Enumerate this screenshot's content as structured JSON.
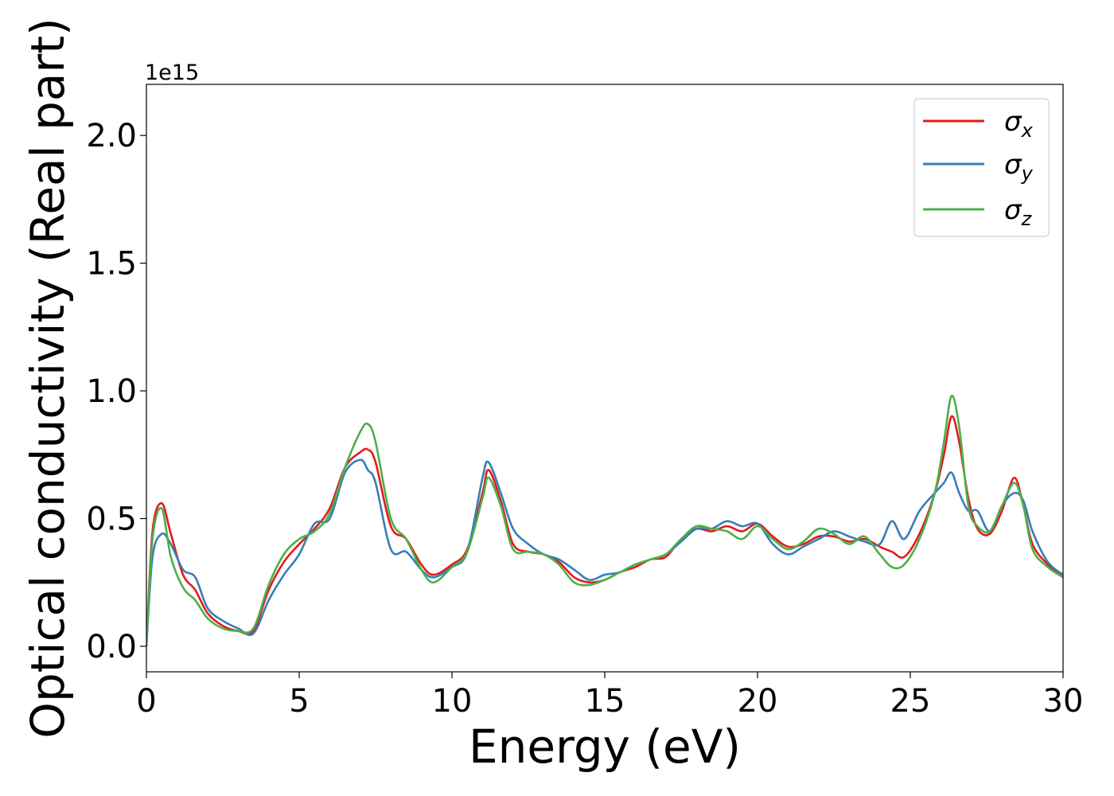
{
  "chart_data": {
    "type": "line",
    "title": "",
    "xlabel": "Energy (eV)",
    "ylabel": "Optical conductivity (Real part)",
    "y_offset_label": "1e15",
    "xlim": [
      0,
      30
    ],
    "ylim": [
      -0.1,
      2.2
    ],
    "x_ticks": [
      0,
      5,
      10,
      15,
      20,
      25,
      30
    ],
    "x_tick_labels": [
      "0",
      "5",
      "10",
      "15",
      "20",
      "25",
      "30"
    ],
    "y_ticks": [
      0.0,
      0.5,
      1.0,
      1.5,
      2.0
    ],
    "y_tick_labels": [
      "0.0",
      "0.5",
      "1.0",
      "1.5",
      "2.0"
    ],
    "grid": false,
    "legend_position": "top-right",
    "x": [
      0,
      0.2,
      0.5,
      0.8,
      1.2,
      1.6,
      2.0,
      2.5,
      3.0,
      3.5,
      4.0,
      4.5,
      5.0,
      5.5,
      6.0,
      6.5,
      7.0,
      7.25,
      7.5,
      8.0,
      8.5,
      9.0,
      9.4,
      10.0,
      10.5,
      11.0,
      11.2,
      11.6,
      12.0,
      12.5,
      13.0,
      13.5,
      14.0,
      14.5,
      15.0,
      15.5,
      16.0,
      16.5,
      17.0,
      17.5,
      18.0,
      18.5,
      19.0,
      19.5,
      20.0,
      20.5,
      21.0,
      21.5,
      22.0,
      22.5,
      23.0,
      23.5,
      24.0,
      24.4,
      24.8,
      25.3,
      25.8,
      26.1,
      26.35,
      26.6,
      26.9,
      27.2,
      27.6,
      28.0,
      28.4,
      28.7,
      29.0,
      29.5,
      30.0
    ],
    "series": [
      {
        "name": "σx",
        "color": "#e41a1c",
        "values": [
          0.0,
          0.45,
          0.56,
          0.44,
          0.28,
          0.22,
          0.13,
          0.08,
          0.06,
          0.06,
          0.22,
          0.33,
          0.4,
          0.46,
          0.54,
          0.7,
          0.76,
          0.77,
          0.72,
          0.47,
          0.42,
          0.32,
          0.28,
          0.32,
          0.38,
          0.6,
          0.69,
          0.57,
          0.4,
          0.37,
          0.36,
          0.33,
          0.27,
          0.25,
          0.26,
          0.29,
          0.31,
          0.34,
          0.35,
          0.42,
          0.46,
          0.45,
          0.47,
          0.45,
          0.48,
          0.43,
          0.39,
          0.4,
          0.43,
          0.43,
          0.41,
          0.42,
          0.39,
          0.37,
          0.35,
          0.44,
          0.6,
          0.75,
          0.9,
          0.8,
          0.58,
          0.46,
          0.44,
          0.53,
          0.66,
          0.55,
          0.4,
          0.32,
          0.27
        ]
      },
      {
        "name": "σy",
        "color": "#377eb8",
        "values": [
          0.0,
          0.35,
          0.44,
          0.4,
          0.3,
          0.27,
          0.15,
          0.1,
          0.07,
          0.05,
          0.18,
          0.28,
          0.36,
          0.48,
          0.5,
          0.68,
          0.73,
          0.69,
          0.64,
          0.38,
          0.37,
          0.3,
          0.27,
          0.31,
          0.37,
          0.66,
          0.72,
          0.6,
          0.46,
          0.4,
          0.36,
          0.34,
          0.3,
          0.26,
          0.28,
          0.29,
          0.32,
          0.34,
          0.36,
          0.41,
          0.46,
          0.46,
          0.49,
          0.47,
          0.48,
          0.4,
          0.36,
          0.39,
          0.42,
          0.45,
          0.43,
          0.41,
          0.4,
          0.49,
          0.42,
          0.53,
          0.6,
          0.64,
          0.68,
          0.6,
          0.53,
          0.53,
          0.45,
          0.55,
          0.6,
          0.57,
          0.45,
          0.33,
          0.28
        ]
      },
      {
        "name": "σz",
        "color": "#4daf4a",
        "values": [
          0.0,
          0.42,
          0.54,
          0.35,
          0.23,
          0.18,
          0.11,
          0.07,
          0.06,
          0.07,
          0.24,
          0.36,
          0.42,
          0.45,
          0.52,
          0.7,
          0.84,
          0.87,
          0.8,
          0.5,
          0.42,
          0.3,
          0.25,
          0.31,
          0.37,
          0.58,
          0.66,
          0.55,
          0.38,
          0.37,
          0.36,
          0.32,
          0.25,
          0.24,
          0.26,
          0.29,
          0.32,
          0.34,
          0.36,
          0.42,
          0.47,
          0.46,
          0.45,
          0.42,
          0.47,
          0.42,
          0.38,
          0.41,
          0.46,
          0.44,
          0.4,
          0.43,
          0.36,
          0.31,
          0.32,
          0.42,
          0.6,
          0.8,
          0.98,
          0.86,
          0.55,
          0.47,
          0.45,
          0.55,
          0.64,
          0.55,
          0.38,
          0.31,
          0.27
        ]
      }
    ]
  },
  "legend": {
    "items": [
      {
        "symbol": "σ",
        "sub": "x"
      },
      {
        "symbol": "σ",
        "sub": "y"
      },
      {
        "symbol": "σ",
        "sub": "z"
      }
    ]
  }
}
